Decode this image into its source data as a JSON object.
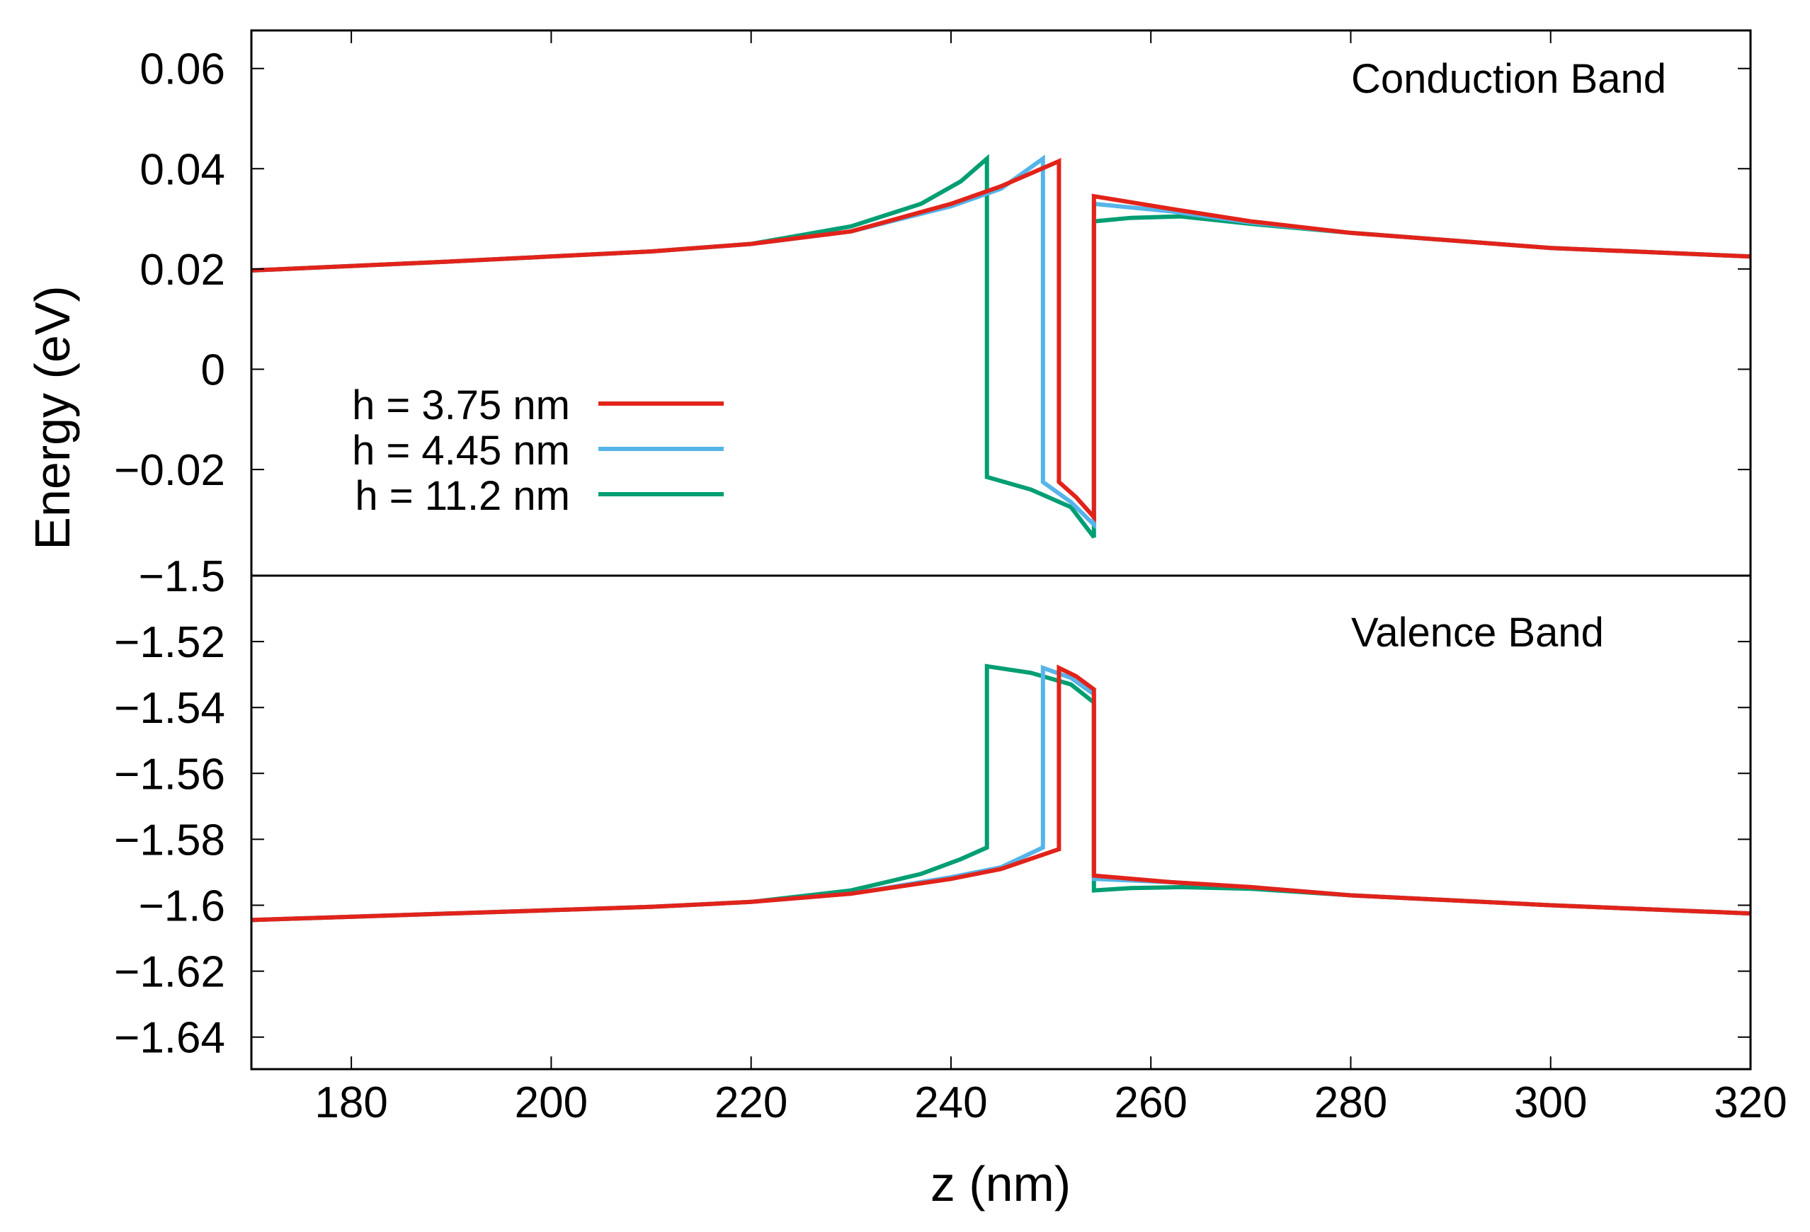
{
  "chart_data": {
    "type": "line",
    "xlabel": "z (nm)",
    "ylabel": "Energy (eV)",
    "xlim": [
      170,
      320
    ],
    "xticks": [
      "180",
      "200",
      "220",
      "240",
      "260",
      "280",
      "300",
      "320"
    ],
    "legend": {
      "placement": "middle-left of upper panel",
      "entries": [
        "h = 3.75 nm",
        "h = 4.45 nm",
        "h = 11.2 nm"
      ]
    },
    "series_colors": [
      "#e2231a",
      "#56b4e9",
      "#009e73"
    ],
    "panels": [
      {
        "title": "Conduction Band",
        "ylim": [
          -0.04,
          0.07
        ],
        "yticks": [
          "0.06",
          "0.04",
          "0.02",
          "0",
          "−0.02"
        ],
        "ytick_values": [
          0.06,
          0.04,
          0.02,
          0,
          -0.02
        ],
        "series": [
          {
            "name": "h = 3.75 nm",
            "x": [
              170,
              190,
              210,
              220,
              230,
              240,
              245,
              250.8,
              250.8,
              252.5,
              254.3,
              254.3,
              262,
              270,
              280,
              300,
              320
            ],
            "y": [
              0.0197,
              0.0215,
              0.0235,
              0.025,
              0.0275,
              0.033,
              0.0365,
              0.0415,
              -0.0225,
              -0.0255,
              -0.0295,
              0.0345,
              0.032,
              0.0295,
              0.0272,
              0.0242,
              0.0225
            ]
          },
          {
            "name": "h = 4.45 nm",
            "x": [
              170,
              190,
              210,
              220,
              230,
              240,
              245,
              249.2,
              249.2,
              252,
              254.3,
              254.3,
              262,
              270,
              280,
              300,
              320
            ],
            "y": [
              0.0197,
              0.0215,
              0.0235,
              0.025,
              0.0275,
              0.0325,
              0.036,
              0.042,
              -0.0225,
              -0.0265,
              -0.031,
              0.033,
              0.0315,
              0.0293,
              0.0272,
              0.0242,
              0.0225
            ]
          },
          {
            "name": "h = 11.2 nm",
            "x": [
              170,
              190,
              210,
              220,
              230,
              237,
              241,
              243.6,
              243.6,
              248,
              252,
              254.3,
              254.3,
              258,
              263,
              270,
              280,
              300,
              320
            ],
            "y": [
              0.0197,
              0.0215,
              0.0235,
              0.025,
              0.0285,
              0.033,
              0.0375,
              0.042,
              -0.0215,
              -0.024,
              -0.0275,
              -0.0335,
              0.0295,
              0.0302,
              0.0305,
              0.029,
              0.0272,
              0.0242,
              0.0225
            ]
          }
        ]
      },
      {
        "title": "Valence Band",
        "ylim": [
          -1.65,
          -1.5
        ],
        "yticks": [
          "−1.5",
          "−1.52",
          "−1.54",
          "−1.56",
          "−1.58",
          "−1.6",
          "−1.62",
          "−1.64"
        ],
        "ytick_values": [
          -1.5,
          -1.52,
          -1.54,
          -1.56,
          -1.58,
          -1.6,
          -1.62,
          -1.64
        ],
        "series": [
          {
            "name": "h = 3.75 nm",
            "x": [
              170,
              190,
              210,
              220,
              230,
              240,
              245,
              250.8,
              250.8,
              252.5,
              254.3,
              254.3,
              262,
              270,
              280,
              300,
              320
            ],
            "y": [
              -1.6045,
              -1.6025,
              -1.6005,
              -1.599,
              -1.5965,
              -1.592,
              -1.589,
              -1.583,
              -1.528,
              -1.5305,
              -1.5345,
              -1.591,
              -1.593,
              -1.5945,
              -1.597,
              -1.6,
              -1.6025
            ]
          },
          {
            "name": "h = 4.45 nm",
            "x": [
              170,
              190,
              210,
              220,
              230,
              240,
              245,
              249.2,
              249.2,
              252,
              254.3,
              254.3,
              262,
              270,
              280,
              300,
              320
            ],
            "y": [
              -1.6045,
              -1.6025,
              -1.6005,
              -1.599,
              -1.5965,
              -1.5915,
              -1.5885,
              -1.5825,
              -1.528,
              -1.531,
              -1.536,
              -1.592,
              -1.593,
              -1.5945,
              -1.597,
              -1.6,
              -1.6025
            ]
          },
          {
            "name": "h = 11.2 nm",
            "x": [
              170,
              190,
              210,
              220,
              230,
              237,
              241,
              243.6,
              243.6,
              248,
              252,
              254.3,
              254.3,
              258,
              263,
              270,
              280,
              300,
              320
            ],
            "y": [
              -1.6045,
              -1.6025,
              -1.6005,
              -1.599,
              -1.5955,
              -1.5905,
              -1.586,
              -1.5825,
              -1.5275,
              -1.5295,
              -1.533,
              -1.5385,
              -1.5955,
              -1.5948,
              -1.5945,
              -1.595,
              -1.597,
              -1.6,
              -1.6025
            ]
          }
        ]
      }
    ]
  }
}
